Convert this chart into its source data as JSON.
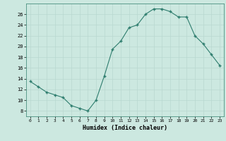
{
  "x": [
    0,
    1,
    2,
    3,
    4,
    5,
    6,
    7,
    8,
    9,
    10,
    11,
    12,
    13,
    14,
    15,
    16,
    17,
    18,
    19,
    20,
    21,
    22,
    23
  ],
  "y": [
    13.5,
    12.5,
    11.5,
    11.0,
    10.5,
    9.0,
    8.5,
    8.0,
    10.0,
    14.5,
    19.5,
    21.0,
    23.5,
    24.0,
    26.0,
    27.0,
    27.0,
    26.5,
    25.5,
    25.5,
    22.0,
    20.5,
    18.5,
    16.5
  ],
  "xlabel": "Humidex (Indice chaleur)",
  "xlim": [
    -0.5,
    23.5
  ],
  "ylim": [
    7,
    28
  ],
  "yticks": [
    8,
    10,
    12,
    14,
    16,
    18,
    20,
    22,
    24,
    26
  ],
  "xticks": [
    0,
    1,
    2,
    3,
    4,
    5,
    6,
    7,
    8,
    9,
    10,
    11,
    12,
    13,
    14,
    15,
    16,
    17,
    18,
    19,
    20,
    21,
    22,
    23
  ],
  "line_color": "#2e7d6e",
  "marker_color": "#2e7d6e",
  "bg_color": "#cce8e0",
  "grid_color": "#b8d8d0",
  "fig_bg": "#cce8e0",
  "spine_color": "#4a9080"
}
